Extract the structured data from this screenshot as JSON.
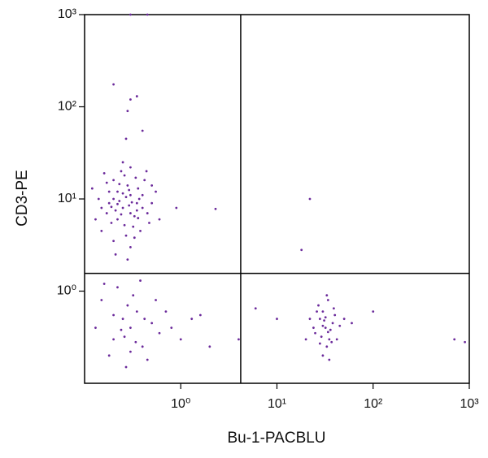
{
  "chart_data": {
    "type": "scatter",
    "x_label": "Bu-1-PACBLU",
    "y_label": "CD3-PE",
    "log_x": true,
    "log_y": true,
    "color": "#6b2a9b",
    "xlim": [
      0.1,
      1000
    ],
    "ylim": [
      0.1,
      1000
    ],
    "xticks": [
      {
        "value": 1,
        "label": "10⁰"
      },
      {
        "value": 10,
        "label": "10¹"
      },
      {
        "value": 100,
        "label": "10²"
      },
      {
        "value": 1000,
        "label": "10³"
      }
    ],
    "yticks": [
      {
        "value": 1,
        "label": "10⁰"
      },
      {
        "value": 10,
        "label": "10¹"
      },
      {
        "value": 100,
        "label": "10²"
      },
      {
        "value": 1000,
        "label": "10³"
      }
    ],
    "gates": {
      "x": 4.2,
      "y": 1.56
    },
    "x": [
      0.25,
      0.2,
      0.3,
      0.18,
      0.35,
      0.22,
      0.28,
      0.15,
      0.4,
      0.32,
      0.26,
      0.19,
      0.45,
      0.23,
      0.3,
      0.21,
      0.5,
      0.14,
      0.27,
      0.36,
      0.24,
      0.17,
      0.33,
      0.42,
      0.29,
      0.2,
      0.38,
      0.13,
      0.55,
      0.25,
      0.3,
      0.16,
      0.22,
      0.35,
      0.27,
      0.19,
      0.31,
      0.24,
      0.6,
      0.12,
      0.44,
      0.21,
      0.28,
      0.34,
      0.18,
      0.26,
      0.4,
      0.23,
      0.37,
      0.15,
      0.5,
      0.29,
      0.2,
      0.33,
      0.25,
      0.47,
      0.17,
      0.3,
      0.22,
      0.36,
      0.25,
      0.3,
      0.2,
      0.35,
      0.15,
      0.4,
      0.28,
      0.5,
      0.18,
      0.22,
      0.6,
      0.32,
      0.13,
      0.45,
      0.26,
      0.7,
      0.38,
      0.2,
      0.3,
      0.55,
      0.24,
      0.16,
      0.42,
      0.34,
      0.8,
      1.0,
      1.3,
      0.27,
      32,
      28,
      35,
      30,
      38,
      25,
      33,
      40,
      27,
      36,
      30,
      45,
      22,
      34,
      29,
      31,
      37,
      26,
      42,
      33,
      24,
      35,
      50,
      30,
      28,
      39,
      32,
      20,
      60,
      34,
      0.2,
      0.3,
      0.35,
      0.28,
      0.4,
      0.27,
      22,
      18,
      2.3,
      0.9,
      700,
      900,
      6,
      1.6,
      2,
      4,
      0.3,
      0.45,
      10,
      100
    ],
    "values": [
      8,
      10,
      7,
      12,
      9,
      6,
      14,
      8,
      11,
      5,
      18,
      5.5,
      7,
      9.5,
      11,
      7.5,
      9,
      10,
      4,
      13,
      20,
      15,
      6.5,
      16,
      8.5,
      3.5,
      4.5,
      6,
      12,
      25,
      3,
      19,
      12,
      7.5,
      10.5,
      8.2,
      9.2,
      6.8,
      6,
      13,
      20,
      2.5,
      2.2,
      17,
      9,
      5.2,
      8,
      14.5,
      10,
      4.5,
      14,
      12.5,
      16,
      3.8,
      11.5,
      5.5,
      7,
      22,
      8.8,
      6.2,
      0.5,
      0.4,
      0.3,
      0.6,
      0.8,
      0.25,
      0.7,
      0.45,
      0.2,
      1.1,
      0.35,
      0.9,
      0.4,
      0.18,
      0.32,
      0.6,
      1.3,
      0.55,
      0.22,
      0.8,
      0.38,
      1.2,
      0.5,
      0.28,
      0.4,
      0.3,
      0.5,
      0.15,
      0.4,
      0.5,
      0.3,
      0.6,
      0.45,
      0.35,
      0.25,
      0.55,
      0.7,
      0.38,
      0.2,
      0.42,
      0.5,
      0.8,
      0.32,
      0.48,
      0.28,
      0.6,
      0.3,
      0.9,
      0.4,
      0.18,
      0.5,
      0.42,
      0.27,
      0.65,
      0.52,
      0.3,
      0.45,
      0.36,
      175,
      120,
      130,
      90,
      55,
      45,
      10,
      2.8,
      7.8,
      8,
      0.3,
      0.28,
      0.65,
      0.55,
      0.25,
      0.3,
      1000,
      1000,
      0.5,
      0.6
    ]
  }
}
